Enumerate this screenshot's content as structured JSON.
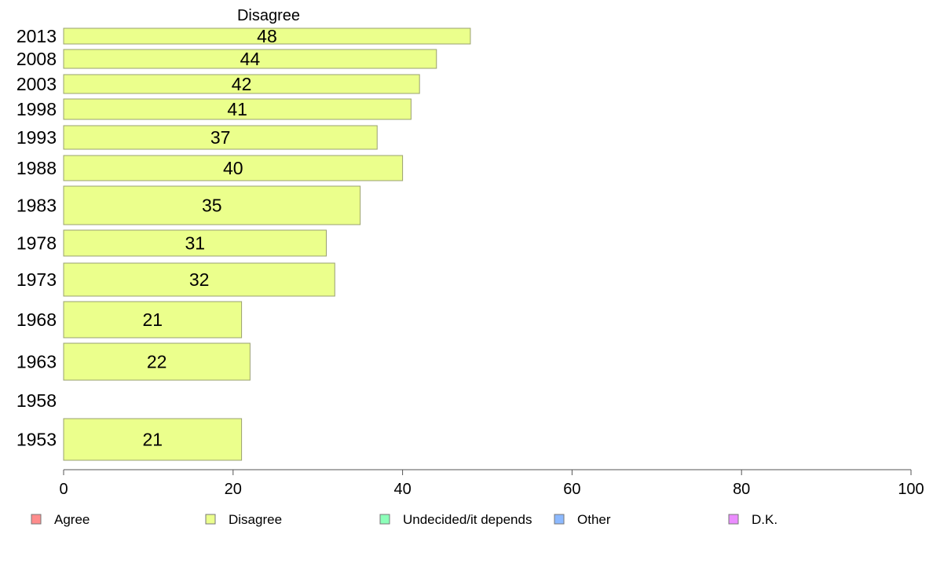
{
  "chart_data": {
    "type": "bar",
    "orientation": "horizontal",
    "title": "Disagree",
    "xlabel": "",
    "ylabel": "",
    "xlim": [
      0,
      100
    ],
    "xticks": [
      0,
      20,
      40,
      60,
      80,
      100
    ],
    "grid": false,
    "legend_position": "bottom",
    "categories": [
      "2013",
      "2008",
      "2003",
      "1998",
      "1993",
      "1988",
      "1983",
      "1978",
      "1973",
      "1968",
      "1963",
      "1958",
      "1953"
    ],
    "series": [
      {
        "name": "Disagree",
        "color": "#ebff8c",
        "values": [
          48,
          44,
          42,
          41,
          37,
          40,
          35,
          31,
          32,
          21,
          22,
          null,
          21
        ]
      }
    ],
    "legend": [
      {
        "label": "Agree",
        "color": "#ff8c8c"
      },
      {
        "label": "Disagree",
        "color": "#ebff8c"
      },
      {
        "label": "Undecided/it depends",
        "color": "#8cffb9"
      },
      {
        "label": "Other",
        "color": "#8cb9ff"
      },
      {
        "label": "D.K.",
        "color": "#eb8cff"
      }
    ]
  }
}
